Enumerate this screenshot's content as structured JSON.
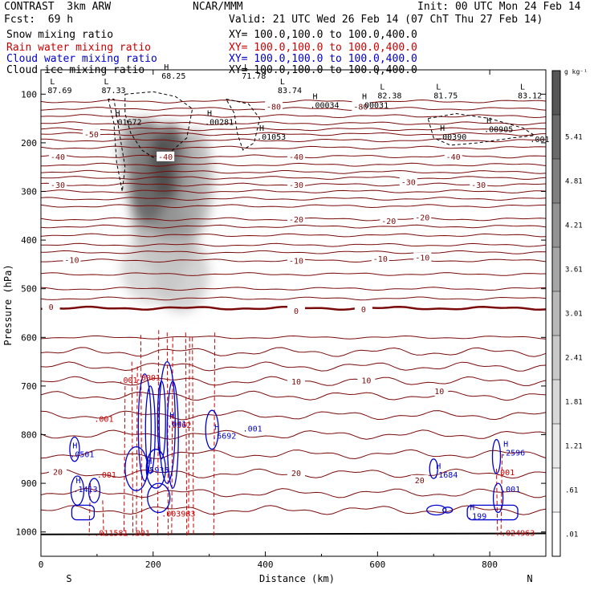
{
  "header": {
    "model": "CONTRAST  3km ARW",
    "center": "NCAR/MMM",
    "init": "Init: 00 UTC Mon 24 Feb 14",
    "fcst": "Fcst:  69 h",
    "valid": "Valid: 21 UTC Wed 26 Feb 14 (07 ChT Thu 27 Feb 14)",
    "fields": [
      {
        "name": "Snow mixing ratio",
        "xy": "XY= 100.0,100.0 to 100.0,400.0",
        "color": "#000000"
      },
      {
        "name": "Rain water mixing ratio",
        "xy": "XY= 100.0,100.0 to 100.0,400.0",
        "color": "#cc0000"
      },
      {
        "name": "Cloud water mixing ratio",
        "xy": "XY= 100.0,100.0 to 100.0,400.0",
        "color": "#0000cc"
      },
      {
        "name": "Cloud ice mixing ratio",
        "xy": "XY= 100.0,100.0 to 100.0,400.0",
        "color": "#000000"
      }
    ]
  },
  "chart_data": {
    "type": "contour",
    "xlabel": "Distance (km)",
    "ylabel": "Pressure (hPa)",
    "xlim": [
      0,
      900
    ],
    "ylim": [
      1050,
      50
    ],
    "x_ticks": [
      0,
      200,
      400,
      600,
      800
    ],
    "y_ticks": [
      100,
      200,
      300,
      400,
      500,
      600,
      700,
      800,
      900,
      1000
    ],
    "left_end_label": "S",
    "right_end_label": "N",
    "colorbar": {
      "unit": "g kg⁻¹",
      "levels": [
        ".01",
        ".61",
        "1.21",
        "1.81",
        "2.41",
        "3.01",
        "3.61",
        "4.21",
        "4.81",
        "5.41"
      ],
      "colors": [
        "#ffffff",
        "#f4f4f4",
        "#e8e8e8",
        "#d8d8d8",
        "#c8c8c8",
        "#b8b8b8",
        "#a6a6a6",
        "#939393",
        "#808080",
        "#6a6a6a",
        "#555555"
      ]
    },
    "temperature_contours": [
      {
        "label": "-50",
        "p": 182
      },
      {
        "label": "-40",
        "p": 228
      },
      {
        "label": "-30",
        "p": 286
      },
      {
        "label": "-20",
        "p": 357
      },
      {
        "label": "-10",
        "p": 442
      },
      {
        "label": "0",
        "p": 540
      },
      {
        "label": "10",
        "p": 690
      },
      {
        "label": "20",
        "p": 880
      }
    ],
    "temperature_labels": [
      {
        "text": "-80",
        "x": 415,
        "p": 125,
        "color": "#7a0a0a"
      },
      {
        "text": "-80",
        "x": 570,
        "p": 125,
        "color": "#7a0a0a"
      },
      {
        "text": "-50",
        "x": 90,
        "p": 182,
        "color": "#7a0a0a"
      },
      {
        "text": "-40",
        "x": 30,
        "p": 228,
        "color": "#7a0a0a"
      },
      {
        "text": "-40",
        "x": 222,
        "p": 228,
        "color": "#7a0a0a"
      },
      {
        "text": "-40",
        "x": 455,
        "p": 228,
        "color": "#7a0a0a"
      },
      {
        "text": "-40",
        "x": 735,
        "p": 228,
        "color": "#7a0a0a"
      },
      {
        "text": "-30",
        "x": 30,
        "p": 286,
        "color": "#7a0a0a"
      },
      {
        "text": "-30",
        "x": 455,
        "p": 286,
        "color": "#7a0a0a"
      },
      {
        "text": "-30",
        "x": 655,
        "p": 280,
        "color": "#7a0a0a"
      },
      {
        "text": "-30",
        "x": 780,
        "p": 286,
        "color": "#7a0a0a"
      },
      {
        "text": "-20",
        "x": 455,
        "p": 357,
        "color": "#7a0a0a"
      },
      {
        "text": "-20",
        "x": 620,
        "p": 360,
        "color": "#7a0a0a"
      },
      {
        "text": "-20",
        "x": 680,
        "p": 353,
        "color": "#7a0a0a"
      },
      {
        "text": "-10",
        "x": 55,
        "p": 440,
        "color": "#7a0a0a"
      },
      {
        "text": "-10",
        "x": 455,
        "p": 442,
        "color": "#7a0a0a"
      },
      {
        "text": "-10",
        "x": 605,
        "p": 438,
        "color": "#7a0a0a"
      },
      {
        "text": "-10",
        "x": 680,
        "p": 435,
        "color": "#7a0a0a"
      },
      {
        "text": "0",
        "x": 18,
        "p": 537,
        "color": "#7a0a0a"
      },
      {
        "text": "0",
        "x": 455,
        "p": 545,
        "color": "#7a0a0a"
      },
      {
        "text": "0",
        "x": 575,
        "p": 542,
        "color": "#7a0a0a"
      },
      {
        "text": "10",
        "x": 455,
        "p": 690,
        "color": "#7a0a0a"
      },
      {
        "text": "10",
        "x": 580,
        "p": 688,
        "color": "#7a0a0a"
      },
      {
        "text": "10",
        "x": 710,
        "p": 710,
        "color": "#7a0a0a"
      },
      {
        "text": "20",
        "x": 30,
        "p": 876,
        "color": "#7a0a0a"
      },
      {
        "text": "20",
        "x": 455,
        "p": 878,
        "color": "#7a0a0a"
      },
      {
        "text": "20",
        "x": 675,
        "p": 893,
        "color": "#7a0a0a"
      }
    ],
    "extrema_labels": [
      {
        "mark": "L",
        "value": "87.69",
        "x": 12,
        "p": 90,
        "color": "#000000"
      },
      {
        "mark": "L",
        "value": "87.33",
        "x": 108,
        "p": 90,
        "color": "#000000"
      },
      {
        "mark": "H",
        "value": "68.25",
        "x": 215,
        "p": 60,
        "color": "#000000"
      },
      {
        "mark": "L",
        "value": "71.78",
        "x": 358,
        "p": 60,
        "color": "#000000"
      },
      {
        "mark": "L",
        "value": "83.74",
        "x": 422,
        "p": 90,
        "color": "#000000"
      },
      {
        "mark": "L",
        "value": "82.38",
        "x": 600,
        "p": 100,
        "color": "#000000"
      },
      {
        "mark": "L",
        "value": "81.75",
        "x": 700,
        "p": 100,
        "color": "#000000"
      },
      {
        "mark": "L",
        "value": "83.12",
        "x": 850,
        "p": 100,
        "color": "#000000"
      },
      {
        "mark": "H",
        "value": ".01672",
        "x": 128,
        "p": 155,
        "color": "#000000"
      },
      {
        "mark": "H",
        "value": ".00281",
        "x": 292,
        "p": 155,
        "color": "#000000"
      },
      {
        "mark": "H",
        "value": ".01053",
        "x": 385,
        "p": 185,
        "color": "#000000"
      },
      {
        "mark": "H",
        "value": ".00034",
        "x": 480,
        "p": 120,
        "color": "#000000"
      },
      {
        "mark": "H",
        "value": ".00031",
        "x": 568,
        "p": 120,
        "color": "#000000"
      },
      {
        "mark": "H",
        "value": ".00905",
        "x": 790,
        "p": 170,
        "color": "#000000"
      },
      {
        "mark": "H",
        "value": ".00390",
        "x": 707,
        "p": 185,
        "color": "#000000"
      },
      {
        "mark": "",
        "value": ".001",
        "x": 872,
        "p": 190,
        "color": "#000000"
      },
      {
        "mark": "",
        "value": ".001",
        "x": 138,
        "p": 685,
        "color": "#cc0000"
      },
      {
        "mark": "",
        "value": ".001",
        "x": 95,
        "p": 765,
        "color": "#cc0000"
      },
      {
        "mark": "H",
        "value": ".0362",
        "x": 225,
        "p": 778,
        "color": "#cc0000"
      },
      {
        "mark": "",
        "value": ".001",
        "x": 100,
        "p": 880,
        "color": "#cc0000"
      },
      {
        "mark": "",
        "value": ".003983",
        "x": 215,
        "p": 960,
        "color": "#cc0000"
      },
      {
        "mark": "",
        "value": ".011581",
        "x": 95,
        "p": 1000,
        "color": "#cc0000"
      },
      {
        "mark": "",
        "value": ".001",
        "x": 160,
        "p": 1000,
        "color": "#cc0000"
      },
      {
        "mark": "",
        "value": ".001",
        "x": 810,
        "p": 875,
        "color": "#cc0000"
      },
      {
        "mark": "",
        "value": ".024963",
        "x": 820,
        "p": 1000,
        "color": "#cc0000"
      },
      {
        "mark": "H",
        "value": ".0501",
        "x": 52,
        "p": 838,
        "color": "#0000cc"
      },
      {
        "mark": "H",
        "value": ".1413",
        "x": 58,
        "p": 910,
        "color": "#0000cc"
      },
      {
        "mark": "H",
        "value": ".5935",
        "x": 185,
        "p": 870,
        "color": "#0000cc"
      },
      {
        "mark": "H",
        "value": ".001",
        "x": 225,
        "p": 775,
        "color": "#0000cc"
      },
      {
        "mark": "H",
        "value": ".6692",
        "x": 305,
        "p": 800,
        "color": "#0000cc"
      },
      {
        "mark": "",
        "value": ".001",
        "x": 360,
        "p": 785,
        "color": "#0000cc"
      },
      {
        "mark": "H",
        "value": ".1684",
        "x": 700,
        "p": 880,
        "color": "#0000cc"
      },
      {
        "mark": "H",
        "value": ".199",
        "x": 760,
        "p": 965,
        "color": "#0000cc"
      },
      {
        "mark": "H",
        "value": ".2596",
        "x": 820,
        "p": 835,
        "color": "#0000cc"
      },
      {
        "mark": "",
        "value": ".001",
        "x": 820,
        "p": 910,
        "color": "#0000cc"
      },
      {
        "mark": "",
        "value": ".0001",
        "x": 170,
        "p": 680,
        "color": "#cc0000"
      }
    ]
  }
}
